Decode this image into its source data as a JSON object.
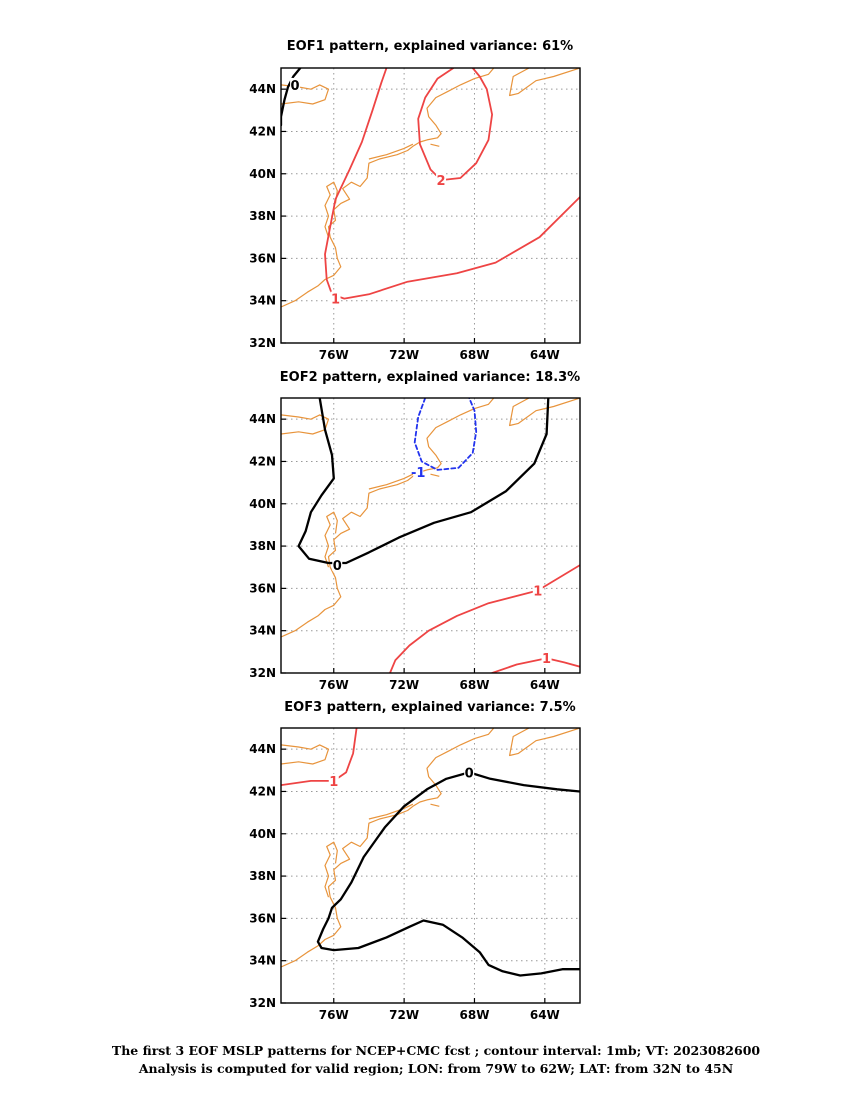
{
  "colors": {
    "positive": "#ee4444",
    "negative": "#2233ee",
    "zero": "#000000",
    "coast": "#e8943c",
    "grid": "#999999",
    "frame": "#000000"
  },
  "axes": {
    "lon_range": [
      -79,
      -62
    ],
    "lat_range": [
      32,
      45
    ],
    "x_ticks": [
      {
        "lon": -76,
        "label": "76W"
      },
      {
        "lon": -72,
        "label": "72W"
      },
      {
        "lon": -68,
        "label": "68W"
      },
      {
        "lon": -64,
        "label": "64W"
      }
    ],
    "y_ticks": [
      {
        "lat": 44,
        "label": "44N"
      },
      {
        "lat": 42,
        "label": "42N"
      },
      {
        "lat": 40,
        "label": "40N"
      },
      {
        "lat": 38,
        "label": "38N"
      },
      {
        "lat": 36,
        "label": "36N"
      },
      {
        "lat": 34,
        "label": "34N"
      },
      {
        "lat": 32,
        "label": "32N"
      }
    ],
    "grid": "dotted"
  },
  "panels": [
    {
      "title": "EOF1 pattern, explained variance: 61%",
      "contours": [
        {
          "label": "0",
          "kind": "zero",
          "dashed": false,
          "label_at": [
            -78.2,
            44.2
          ],
          "points": [
            [
              -77.9,
              45.0
            ],
            [
              -78.3,
              44.6
            ],
            [
              -78.6,
              44.1
            ],
            [
              -78.8,
              43.5
            ],
            [
              -79.0,
              42.7
            ],
            [
              -79.0,
              42.3
            ]
          ]
        },
        {
          "label": "2",
          "kind": "positive",
          "dashed": false,
          "label_at": [
            -69.9,
            39.7
          ],
          "points": [
            [
              -69.2,
              45.0
            ],
            [
              -70.1,
              44.5
            ],
            [
              -70.8,
              43.6
            ],
            [
              -71.2,
              42.6
            ],
            [
              -71.1,
              41.4
            ],
            [
              -70.5,
              40.2
            ],
            [
              -69.9,
              39.7
            ],
            [
              -68.8,
              39.8
            ],
            [
              -67.9,
              40.5
            ],
            [
              -67.2,
              41.6
            ],
            [
              -67.0,
              42.8
            ],
            [
              -67.3,
              44.0
            ],
            [
              -67.7,
              44.6
            ],
            [
              -68.1,
              45.0
            ]
          ]
        },
        {
          "label": "1",
          "kind": "positive",
          "dashed": false,
          "label_at": [
            -75.9,
            34.1
          ],
          "points": [
            [
              -73.0,
              45.0
            ],
            [
              -73.3,
              44.3
            ],
            [
              -73.8,
              43.0
            ],
            [
              -74.4,
              41.5
            ],
            [
              -75.1,
              40.2
            ],
            [
              -75.9,
              38.8
            ],
            [
              -76.2,
              37.5
            ],
            [
              -76.5,
              36.2
            ],
            [
              -76.4,
              35.0
            ],
            [
              -76.1,
              34.3
            ],
            [
              -75.4,
              34.1
            ],
            [
              -74.0,
              34.3
            ],
            [
              -71.8,
              34.9
            ],
            [
              -69.0,
              35.3
            ],
            [
              -66.8,
              35.8
            ],
            [
              -64.3,
              37.0
            ],
            [
              -62.0,
              38.9
            ]
          ]
        }
      ]
    },
    {
      "title": "EOF2 pattern, explained variance: 18.3%",
      "contours": [
        {
          "label": "0",
          "kind": "zero",
          "dashed": false,
          "label_at": [
            -75.8,
            37.1
          ],
          "points": [
            [
              -76.8,
              45.0
            ],
            [
              -76.5,
              43.5
            ],
            [
              -76.1,
              42.3
            ],
            [
              -76.0,
              41.2
            ],
            [
              -76.7,
              40.4
            ],
            [
              -77.3,
              39.6
            ],
            [
              -77.6,
              38.7
            ],
            [
              -78.0,
              38.0
            ],
            [
              -77.4,
              37.4
            ],
            [
              -76.3,
              37.2
            ],
            [
              -75.3,
              37.2
            ],
            [
              -74.0,
              37.7
            ],
            [
              -72.3,
              38.4
            ],
            [
              -70.3,
              39.1
            ],
            [
              -68.2,
              39.6
            ],
            [
              -66.2,
              40.6
            ],
            [
              -64.6,
              41.9
            ],
            [
              -63.9,
              43.3
            ],
            [
              -63.8,
              45.0
            ]
          ]
        },
        {
          "label": "-1",
          "kind": "negative",
          "dashed": true,
          "label_at": [
            -71.2,
            41.5
          ],
          "points": [
            [
              -70.8,
              45.0
            ],
            [
              -71.2,
              44.1
            ],
            [
              -71.4,
              42.9
            ],
            [
              -71.0,
              42.0
            ],
            [
              -70.1,
              41.6
            ],
            [
              -68.9,
              41.7
            ],
            [
              -68.1,
              42.4
            ],
            [
              -67.9,
              43.4
            ],
            [
              -68.0,
              44.4
            ],
            [
              -68.3,
              45.0
            ]
          ]
        },
        {
          "label": "1",
          "kind": "positive",
          "dashed": false,
          "label_at": [
            -64.4,
            35.9
          ],
          "points": [
            [
              -72.8,
              32.0
            ],
            [
              -72.5,
              32.6
            ],
            [
              -71.7,
              33.3
            ],
            [
              -70.6,
              34.0
            ],
            [
              -69.0,
              34.7
            ],
            [
              -67.2,
              35.3
            ],
            [
              -64.4,
              35.9
            ],
            [
              -62.0,
              37.1
            ]
          ]
        },
        {
          "label": "1",
          "kind": "positive",
          "dashed": false,
          "label_at": [
            -63.9,
            32.7
          ],
          "points": [
            [
              -67.0,
              32.0
            ],
            [
              -65.6,
              32.4
            ],
            [
              -63.9,
              32.7
            ],
            [
              -62.9,
              32.5
            ],
            [
              -62.0,
              32.3
            ]
          ]
        }
      ]
    },
    {
      "title": "EOF3 pattern, explained variance: 7.5%",
      "contours": [
        {
          "label": "1",
          "kind": "positive",
          "dashed": false,
          "label_at": [
            -76.0,
            42.5
          ],
          "points": [
            [
              -74.7,
              45.0
            ],
            [
              -74.9,
              43.8
            ],
            [
              -75.3,
              42.9
            ],
            [
              -76.0,
              42.5
            ],
            [
              -77.3,
              42.5
            ],
            [
              -79.0,
              42.3
            ]
          ]
        },
        {
          "label": "0",
          "kind": "zero",
          "dashed": false,
          "label_at": [
            -68.3,
            42.9
          ],
          "points": [
            [
              -62.0,
              42.0
            ],
            [
              -63.3,
              42.1
            ],
            [
              -65.2,
              42.3
            ],
            [
              -67.1,
              42.6
            ],
            [
              -68.3,
              42.9
            ],
            [
              -69.6,
              42.6
            ],
            [
              -70.7,
              42.1
            ],
            [
              -72.0,
              41.3
            ],
            [
              -73.1,
              40.3
            ],
            [
              -74.3,
              38.9
            ],
            [
              -75.0,
              37.7
            ],
            [
              -75.6,
              36.9
            ],
            [
              -76.1,
              36.5
            ],
            [
              -76.3,
              36.0
            ],
            [
              -76.6,
              35.5
            ],
            [
              -76.9,
              34.9
            ],
            [
              -76.7,
              34.6
            ],
            [
              -76.0,
              34.5
            ],
            [
              -74.6,
              34.6
            ],
            [
              -73.0,
              35.1
            ],
            [
              -71.7,
              35.6
            ],
            [
              -70.9,
              35.9
            ],
            [
              -69.8,
              35.7
            ],
            [
              -68.7,
              35.1
            ],
            [
              -67.7,
              34.4
            ],
            [
              -67.2,
              33.8
            ],
            [
              -66.4,
              33.5
            ],
            [
              -65.4,
              33.3
            ],
            [
              -64.2,
              33.4
            ],
            [
              -63.0,
              33.6
            ],
            [
              -62.0,
              33.6
            ]
          ]
        }
      ]
    }
  ],
  "coastline": [
    [
      [
        -79.0,
        33.7
      ],
      [
        -78.2,
        34.0
      ],
      [
        -77.5,
        34.4
      ],
      [
        -76.9,
        34.7
      ],
      [
        -76.5,
        35.0
      ],
      [
        -76.0,
        35.2
      ],
      [
        -75.6,
        35.6
      ],
      [
        -75.8,
        36.0
      ],
      [
        -75.9,
        36.5
      ],
      [
        -76.2,
        37.0
      ],
      [
        -76.3,
        37.5
      ],
      [
        -75.9,
        37.8
      ],
      [
        -76.0,
        38.3
      ],
      [
        -75.6,
        38.6
      ],
      [
        -75.1,
        38.8
      ],
      [
        -75.5,
        39.3
      ],
      [
        -75.0,
        39.6
      ],
      [
        -74.5,
        39.4
      ],
      [
        -74.1,
        39.8
      ],
      [
        -74.0,
        40.5
      ],
      [
        -73.4,
        40.7
      ],
      [
        -72.4,
        40.9
      ],
      [
        -71.8,
        41.1
      ],
      [
        -71.5,
        41.3
      ],
      [
        -71.1,
        41.5
      ],
      [
        -70.7,
        41.6
      ],
      [
        -70.1,
        41.7
      ],
      [
        -69.9,
        41.9
      ],
      [
        -70.2,
        42.3
      ],
      [
        -70.6,
        42.7
      ],
      [
        -70.7,
        43.1
      ],
      [
        -70.2,
        43.6
      ],
      [
        -69.5,
        43.9
      ],
      [
        -68.8,
        44.2
      ],
      [
        -68.0,
        44.5
      ],
      [
        -67.2,
        44.7
      ],
      [
        -66.9,
        45.0
      ]
    ],
    [
      [
        -76.3,
        37.0
      ],
      [
        -76.5,
        37.5
      ],
      [
        -76.3,
        38.0
      ],
      [
        -76.5,
        38.5
      ],
      [
        -76.2,
        39.0
      ],
      [
        -76.4,
        39.4
      ],
      [
        -76.0,
        39.6
      ],
      [
        -75.8,
        39.2
      ],
      [
        -75.9,
        38.6
      ]
    ],
    [
      [
        -79.0,
        43.3
      ],
      [
        -78.0,
        43.4
      ],
      [
        -77.2,
        43.3
      ],
      [
        -76.5,
        43.5
      ],
      [
        -76.3,
        44.0
      ],
      [
        -76.8,
        44.2
      ],
      [
        -77.3,
        44.0
      ],
      [
        -78.0,
        44.1
      ],
      [
        -79.0,
        44.2
      ]
    ],
    [
      [
        -74.0,
        40.7
      ],
      [
        -73.0,
        40.9
      ],
      [
        -72.0,
        41.2
      ],
      [
        -71.5,
        41.4
      ]
    ],
    [
      [
        -70.0,
        41.3
      ],
      [
        -70.5,
        41.4
      ]
    ],
    [
      [
        -62.0,
        45.0
      ],
      [
        -63.5,
        44.6
      ],
      [
        -64.5,
        44.4
      ],
      [
        -65.5,
        43.8
      ],
      [
        -66.0,
        43.7
      ],
      [
        -65.8,
        44.6
      ],
      [
        -64.9,
        45.0
      ]
    ]
  ],
  "caption": {
    "line1": "The first 3 EOF MSLP patterns for NCEP+CMC fcst ; contour interval: 1mb; VT: 2023082600",
    "line2": "Analysis is computed for valid region; LON: from 79W to 62W; LAT: from 32N to 45N"
  }
}
